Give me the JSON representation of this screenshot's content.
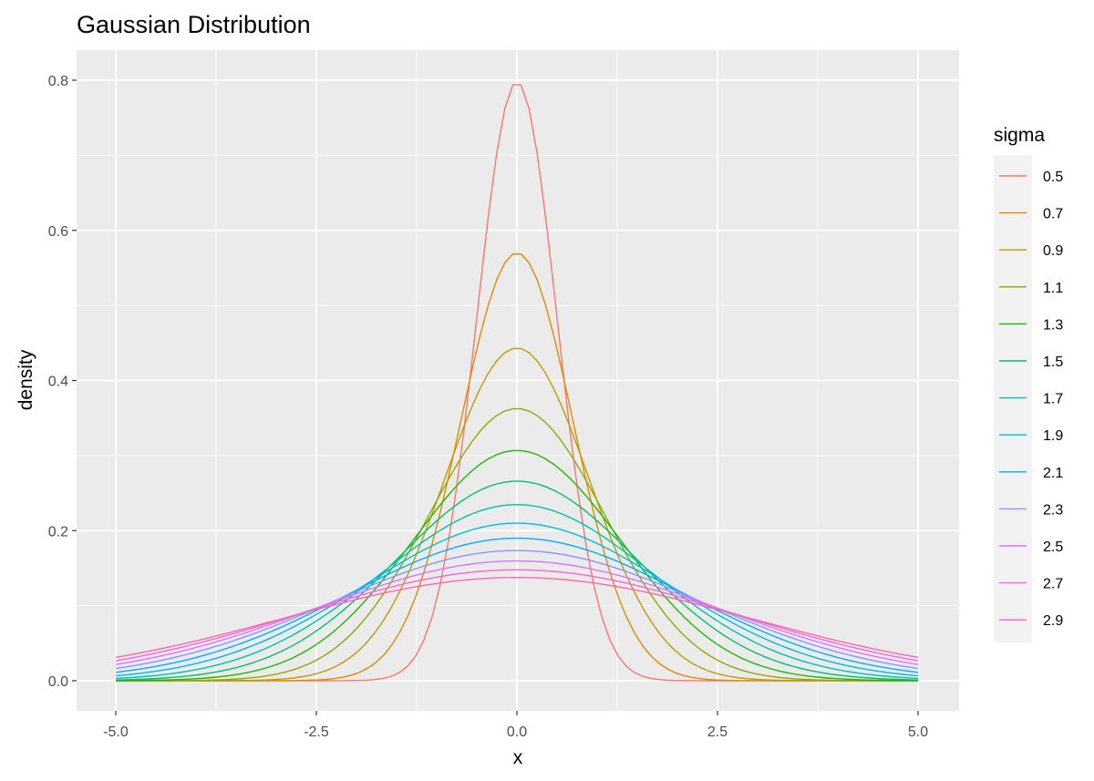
{
  "chart_data": {
    "type": "line",
    "title": "Gaussian Distribution",
    "xlabel": "x",
    "ylabel": "density",
    "xlim": [
      -5,
      5
    ],
    "ylim": [
      0,
      0.8
    ],
    "x_ticks": [
      "-5.0",
      "-2.5",
      "0.0",
      "2.5",
      "5.0"
    ],
    "y_ticks": [
      "0.0",
      "0.2",
      "0.4",
      "0.6",
      "0.8"
    ],
    "grid": true,
    "legend_title": "sigma",
    "legend_position": "right",
    "mean": 0,
    "series": [
      {
        "name": "0.5",
        "sigma": 0.5,
        "color": "#F8766D"
      },
      {
        "name": "0.7",
        "sigma": 0.7,
        "color": "#E18A00"
      },
      {
        "name": "0.9",
        "sigma": 0.9,
        "color": "#BE9C00"
      },
      {
        "name": "1.1",
        "sigma": 1.1,
        "color": "#8CAB00"
      },
      {
        "name": "1.3",
        "sigma": 1.3,
        "color": "#24B700"
      },
      {
        "name": "1.5",
        "sigma": 1.5,
        "color": "#00BE70"
      },
      {
        "name": "1.7",
        "sigma": 1.7,
        "color": "#00C1AB"
      },
      {
        "name": "1.9",
        "sigma": 1.9,
        "color": "#00BBDA"
      },
      {
        "name": "2.1",
        "sigma": 2.1,
        "color": "#00ACFC"
      },
      {
        "name": "2.3",
        "sigma": 2.3,
        "color": "#8B93FF"
      },
      {
        "name": "2.5",
        "sigma": 2.5,
        "color": "#D575FE"
      },
      {
        "name": "2.7",
        "sigma": 2.7,
        "color": "#F962DD"
      },
      {
        "name": "2.9",
        "sigma": 2.9,
        "color": "#FF65AC"
      }
    ]
  }
}
